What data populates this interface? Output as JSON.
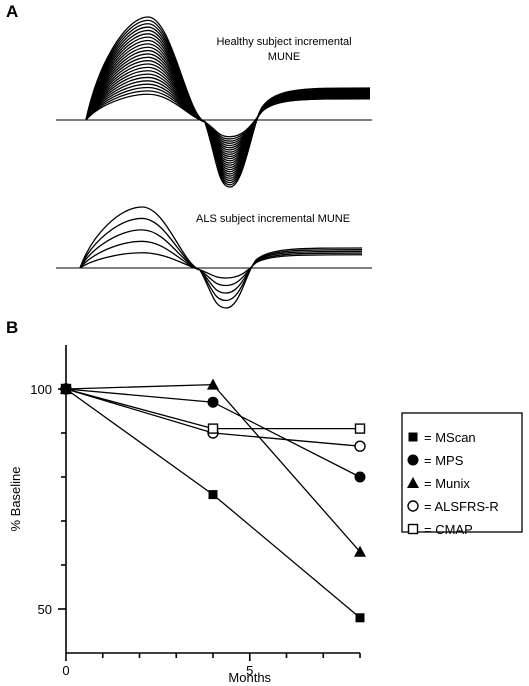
{
  "panel_a": {
    "label": "A",
    "healthy_title_line1": "Healthy subject incremental",
    "healthy_title_line2": "MUNE",
    "als_title": "ALS subject incremental  MUNE",
    "healthy_trace_count": 24,
    "als_trace_count": 5
  },
  "chart_data": {
    "type": "line",
    "panel_label": "B",
    "title": "",
    "xlabel": "Months",
    "ylabel": "% Baseline",
    "xlim": [
      0,
      8
    ],
    "ylim": [
      40,
      110
    ],
    "x_ticks": [
      0,
      5
    ],
    "y_ticks": [
      50,
      100
    ],
    "legend_position": "right",
    "series": [
      {
        "name": "= MScan",
        "marker": "filled-square",
        "x": [
          0,
          4,
          8
        ],
        "values": [
          100,
          76,
          48
        ]
      },
      {
        "name": "= MPS",
        "marker": "filled-circle",
        "x": [
          0,
          4,
          8
        ],
        "values": [
          100,
          97,
          80
        ]
      },
      {
        "name": "= Munix",
        "marker": "filled-triangle",
        "x": [
          0,
          4,
          8
        ],
        "values": [
          100,
          101,
          63
        ]
      },
      {
        "name": "= ALSFRS-R",
        "marker": "open-circle",
        "x": [
          0,
          4,
          8
        ],
        "values": [
          100,
          90,
          87
        ]
      },
      {
        "name": "= CMAP",
        "marker": "open-square",
        "x": [
          0,
          4,
          8
        ],
        "values": [
          100,
          91,
          91
        ]
      }
    ]
  }
}
